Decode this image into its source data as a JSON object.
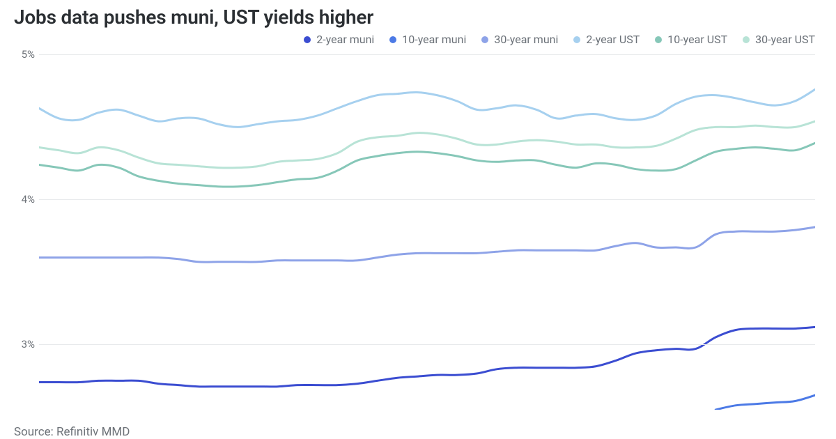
{
  "chart": {
    "type": "line",
    "title": "Jobs data pushes muni, UST yields higher",
    "source": "Source: Refinitiv MMD",
    "background_color": "#ffffff",
    "grid_color": "#e7e9eb",
    "axis_font_color": "#6d7278",
    "title_font_color": "#2b2f33",
    "title_fontsize": 28,
    "axis_fontsize": 15,
    "legend_fontsize": 16,
    "line_width": 3,
    "y_axis": {
      "min": 2.55,
      "max": 5.05,
      "ticks": [
        3,
        4,
        5
      ],
      "tick_labels": [
        "3%",
        "4%",
        "5%"
      ]
    },
    "x_axis": {
      "point_count": 40
    },
    "legend": [
      {
        "key": "muni2",
        "label": "2-year muni",
        "color": "#3b4dd1"
      },
      {
        "key": "muni10",
        "label": "10-year muni",
        "color": "#4c7ae6"
      },
      {
        "key": "muni30",
        "label": "30-year muni",
        "color": "#8ea3e8"
      },
      {
        "key": "ust2",
        "label": "2-year UST",
        "color": "#a6d0ef"
      },
      {
        "key": "ust10",
        "label": "10-year UST",
        "color": "#86c7b8"
      },
      {
        "key": "ust30",
        "label": "30-year UST",
        "color": "#b8e3d6"
      }
    ],
    "series": {
      "ust2": [
        4.63,
        4.56,
        4.55,
        4.6,
        4.62,
        4.58,
        4.54,
        4.56,
        4.56,
        4.52,
        4.5,
        4.52,
        4.54,
        4.55,
        4.58,
        4.63,
        4.68,
        4.72,
        4.73,
        4.74,
        4.72,
        4.68,
        4.62,
        4.63,
        4.65,
        4.62,
        4.56,
        4.58,
        4.59,
        4.56,
        4.55,
        4.58,
        4.66,
        4.71,
        4.72,
        4.7,
        4.67,
        4.65,
        4.68,
        4.76
      ],
      "ust30": [
        4.36,
        4.34,
        4.32,
        4.36,
        4.34,
        4.29,
        4.25,
        4.24,
        4.23,
        4.22,
        4.22,
        4.23,
        4.26,
        4.27,
        4.28,
        4.32,
        4.4,
        4.43,
        4.44,
        4.46,
        4.45,
        4.42,
        4.38,
        4.38,
        4.4,
        4.41,
        4.4,
        4.38,
        4.38,
        4.36,
        4.36,
        4.37,
        4.42,
        4.48,
        4.5,
        4.5,
        4.51,
        4.5,
        4.5,
        4.54
      ],
      "ust10": [
        4.24,
        4.22,
        4.2,
        4.24,
        4.22,
        4.16,
        4.13,
        4.11,
        4.1,
        4.09,
        4.09,
        4.1,
        4.12,
        4.14,
        4.15,
        4.2,
        4.27,
        4.3,
        4.32,
        4.33,
        4.32,
        4.3,
        4.27,
        4.26,
        4.27,
        4.27,
        4.24,
        4.22,
        4.25,
        4.24,
        4.21,
        4.2,
        4.21,
        4.27,
        4.33,
        4.35,
        4.36,
        4.35,
        4.34,
        4.39
      ],
      "muni30": [
        3.6,
        3.6,
        3.6,
        3.6,
        3.6,
        3.6,
        3.6,
        3.59,
        3.57,
        3.57,
        3.57,
        3.57,
        3.58,
        3.58,
        3.58,
        3.58,
        3.58,
        3.6,
        3.62,
        3.63,
        3.63,
        3.63,
        3.63,
        3.64,
        3.65,
        3.65,
        3.65,
        3.65,
        3.65,
        3.68,
        3.7,
        3.67,
        3.67,
        3.67,
        3.76,
        3.78,
        3.78,
        3.78,
        3.79,
        3.81
      ],
      "muni2": [
        2.74,
        2.74,
        2.74,
        2.75,
        2.75,
        2.75,
        2.73,
        2.72,
        2.71,
        2.71,
        2.71,
        2.71,
        2.71,
        2.72,
        2.72,
        2.72,
        2.73,
        2.75,
        2.77,
        2.78,
        2.79,
        2.79,
        2.8,
        2.83,
        2.84,
        2.84,
        2.84,
        2.84,
        2.85,
        2.89,
        2.94,
        2.96,
        2.97,
        2.97,
        3.05,
        3.1,
        3.11,
        3.11,
        3.11,
        3.12
      ],
      "muni10": [
        null,
        null,
        null,
        null,
        null,
        null,
        null,
        null,
        null,
        null,
        null,
        null,
        null,
        null,
        null,
        null,
        null,
        null,
        null,
        null,
        null,
        null,
        null,
        null,
        null,
        null,
        null,
        null,
        null,
        null,
        null,
        null,
        null,
        null,
        2.55,
        2.58,
        2.59,
        2.6,
        2.61,
        2.65
      ]
    }
  }
}
